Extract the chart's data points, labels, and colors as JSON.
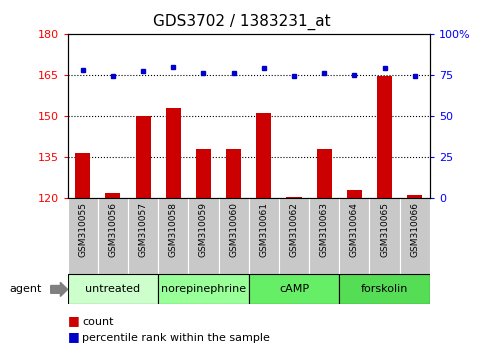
{
  "title": "GDS3702 / 1383231_at",
  "samples": [
    "GSM310055",
    "GSM310056",
    "GSM310057",
    "GSM310058",
    "GSM310059",
    "GSM310060",
    "GSM310061",
    "GSM310062",
    "GSM310063",
    "GSM310064",
    "GSM310065",
    "GSM310066"
  ],
  "count_values": [
    136.5,
    122.0,
    150.0,
    153.0,
    138.0,
    138.0,
    151.0,
    120.5,
    138.0,
    123.0,
    164.5,
    121.0
  ],
  "percentile_values": [
    78,
    74,
    77,
    80,
    76,
    76,
    79,
    74,
    76,
    75,
    79,
    74
  ],
  "bar_color": "#cc0000",
  "dot_color": "#0000cc",
  "left_ylim": [
    120,
    180
  ],
  "left_yticks": [
    120,
    135,
    150,
    165,
    180
  ],
  "right_ylim": [
    0,
    100
  ],
  "right_yticks": [
    0,
    25,
    50,
    75,
    100
  ],
  "right_yticklabels": [
    "0",
    "25",
    "50",
    "75",
    "100%"
  ],
  "hlines": [
    135,
    150,
    165
  ],
  "groups": [
    {
      "label": "untreated",
      "start": 0,
      "end": 3,
      "color": "#ccffcc"
    },
    {
      "label": "norepinephrine",
      "start": 3,
      "end": 6,
      "color": "#99ff99"
    },
    {
      "label": "cAMP",
      "start": 6,
      "end": 9,
      "color": "#66ee66"
    },
    {
      "label": "forskolin",
      "start": 9,
      "end": 12,
      "color": "#55dd55"
    }
  ],
  "xlabel_agent": "agent",
  "legend_count_label": "count",
  "legend_pct_label": "percentile rank within the sample",
  "bg_plot": "#ffffff",
  "bg_sample_row": "#c8c8c8",
  "title_fontsize": 11,
  "tick_fontsize": 8,
  "sample_fontsize": 6.5,
  "group_fontsize": 8,
  "legend_fontsize": 8
}
